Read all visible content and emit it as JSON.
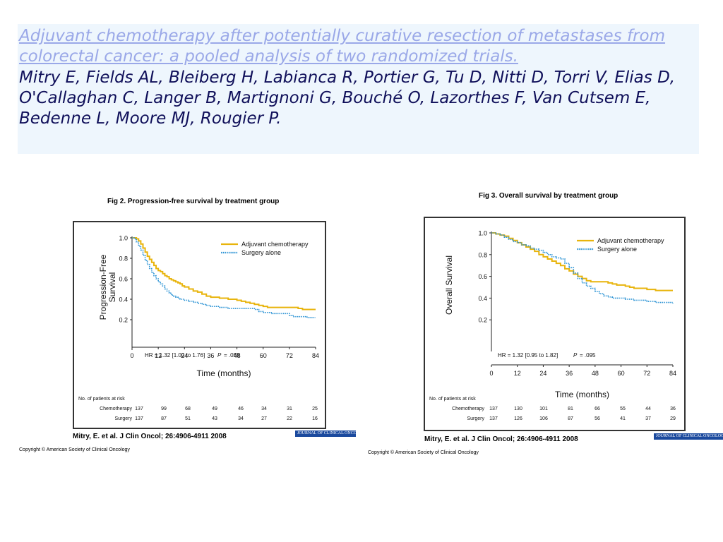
{
  "header": {
    "article_title": "Adjuvant chemotherapy after potentially curative resection of metastases from colorectal cancer: a pooled analysis of two randomized trials.",
    "authors": "Mitry E, Fields AL, Bleiberg H, Labianca R, Portier G, Tu D, Nitti D, Torri V, Elias D, O'Callaghan C, Langer B, Martignoni G, Bouché O, Lazorthes F, Van Cutsem E, Bedenne L, Moore MJ, Rougier P."
  },
  "colors": {
    "chemo": "#e8b40c",
    "surgery": "#2a92d4"
  },
  "chart_data": [
    {
      "type": "line",
      "figure_title": "Fig 2. Progression-free survival by treatment group",
      "xlabel": "Time (months)",
      "ylabel": "Progression-Free Survival",
      "ylabel_lines": [
        "Progression-Free",
        "Survival"
      ],
      "xlim": [
        0,
        84
      ],
      "ylim": [
        0,
        1.0
      ],
      "x_ticks": [
        "0",
        "12",
        "24",
        "36",
        "48",
        "60",
        "72",
        "84"
      ],
      "y_ticks": [
        "0.2",
        "0.4",
        "0.6",
        "0.8",
        "1.0"
      ],
      "legend_position": "top-right",
      "grid": false,
      "series": [
        {
          "name": "Adjuvant chemotherapy",
          "style": "solid",
          "x": [
            0,
            2,
            3,
            4,
            5,
            6,
            7,
            8,
            9,
            10,
            11,
            12,
            13,
            14,
            15,
            16,
            17,
            18,
            19,
            20,
            21,
            22,
            23,
            24,
            26,
            28,
            30,
            32,
            34,
            36,
            38,
            40,
            42,
            44,
            46,
            48,
            50,
            52,
            54,
            56,
            58,
            60,
            62,
            66,
            70,
            72,
            76,
            78,
            80,
            82,
            84
          ],
          "y": [
            1.0,
            0.99,
            0.97,
            0.94,
            0.9,
            0.86,
            0.82,
            0.79,
            0.76,
            0.73,
            0.7,
            0.68,
            0.67,
            0.65,
            0.63,
            0.62,
            0.6,
            0.59,
            0.58,
            0.57,
            0.56,
            0.55,
            0.53,
            0.52,
            0.5,
            0.48,
            0.47,
            0.45,
            0.43,
            0.42,
            0.42,
            0.41,
            0.41,
            0.4,
            0.4,
            0.39,
            0.38,
            0.37,
            0.36,
            0.35,
            0.34,
            0.33,
            0.32,
            0.32,
            0.32,
            0.32,
            0.31,
            0.3,
            0.3,
            0.3,
            0.3
          ]
        },
        {
          "name": "Surgery alone",
          "style": "dotted",
          "x": [
            0,
            1,
            2,
            3,
            4,
            5,
            6,
            7,
            8,
            9,
            10,
            11,
            12,
            13,
            14,
            15,
            16,
            17,
            18,
            19,
            20,
            21,
            22,
            24,
            26,
            28,
            30,
            32,
            34,
            36,
            38,
            40,
            42,
            44,
            46,
            48,
            50,
            52,
            54,
            56,
            58,
            60,
            62,
            64,
            66,
            68,
            70,
            72,
            74,
            76,
            78,
            80,
            82,
            84
          ],
          "y": [
            1.0,
            0.99,
            0.96,
            0.92,
            0.88,
            0.83,
            0.78,
            0.74,
            0.7,
            0.66,
            0.63,
            0.6,
            0.57,
            0.55,
            0.53,
            0.5,
            0.48,
            0.46,
            0.44,
            0.43,
            0.42,
            0.41,
            0.4,
            0.39,
            0.38,
            0.37,
            0.36,
            0.35,
            0.34,
            0.33,
            0.33,
            0.32,
            0.32,
            0.31,
            0.31,
            0.31,
            0.31,
            0.31,
            0.31,
            0.3,
            0.28,
            0.27,
            0.27,
            0.26,
            0.26,
            0.26,
            0.26,
            0.24,
            0.23,
            0.23,
            0.23,
            0.22,
            0.22,
            0.22
          ]
        }
      ],
      "annotation": {
        "hr_text": "HR = 1.32 [1.00 to 1.76]",
        "p_label": "P",
        "p_value": "= .058"
      },
      "risk_table": {
        "title": "No. of patients at risk",
        "rows": [
          {
            "label": "Chemotherapy",
            "values": [
              "137",
              "99",
              "68",
              "49",
              "46",
              "34",
              "31",
              "25"
            ]
          },
          {
            "label": "Surgery",
            "values": [
              "137",
              "87",
              "51",
              "43",
              "34",
              "27",
              "22",
              "16"
            ]
          }
        ]
      },
      "citation": "Mitry, E. et al. J Clin Oncol; 26:4906-4911 2008",
      "copyright": "Copyright © American Society of Clinical Oncology",
      "journal_logo": "JOURNAL OF CLINICAL ONCOLOGY"
    },
    {
      "type": "line",
      "figure_title": "Fig 3. Overall survival by treatment group",
      "xlabel": "Time (months)",
      "ylabel": "Overall Survival",
      "ylabel_lines": [
        "Overall Survival"
      ],
      "xlim": [
        0,
        84
      ],
      "ylim": [
        0,
        1.0
      ],
      "x_ticks": [
        "0",
        "12",
        "24",
        "36",
        "48",
        "60",
        "72",
        "84"
      ],
      "y_ticks": [
        "0.2",
        "0.4",
        "0.6",
        "0.8",
        "1.0"
      ],
      "legend_position": "top-right",
      "grid": false,
      "series": [
        {
          "name": "Adjuvant chemotherapy",
          "style": "solid",
          "x": [
            0,
            2,
            4,
            6,
            8,
            10,
            12,
            14,
            16,
            18,
            20,
            22,
            24,
            26,
            28,
            30,
            32,
            34,
            36,
            38,
            40,
            42,
            44,
            46,
            48,
            50,
            52,
            54,
            56,
            58,
            60,
            62,
            64,
            66,
            68,
            70,
            72,
            74,
            76,
            78,
            80,
            82,
            84
          ],
          "y": [
            1.0,
            0.99,
            0.98,
            0.97,
            0.95,
            0.93,
            0.91,
            0.89,
            0.87,
            0.85,
            0.83,
            0.8,
            0.78,
            0.76,
            0.74,
            0.72,
            0.7,
            0.67,
            0.65,
            0.62,
            0.6,
            0.58,
            0.56,
            0.55,
            0.55,
            0.55,
            0.55,
            0.54,
            0.53,
            0.52,
            0.52,
            0.51,
            0.5,
            0.49,
            0.49,
            0.49,
            0.48,
            0.48,
            0.47,
            0.47,
            0.47,
            0.47,
            0.47
          ]
        },
        {
          "name": "Surgery alone",
          "style": "dotted",
          "x": [
            0,
            2,
            4,
            6,
            8,
            10,
            12,
            14,
            16,
            18,
            20,
            22,
            24,
            26,
            28,
            30,
            32,
            34,
            36,
            38,
            40,
            42,
            44,
            46,
            48,
            50,
            52,
            54,
            56,
            58,
            60,
            62,
            64,
            66,
            68,
            70,
            72,
            74,
            76,
            78,
            80,
            82,
            84
          ],
          "y": [
            1.0,
            0.99,
            0.98,
            0.96,
            0.94,
            0.92,
            0.91,
            0.89,
            0.88,
            0.86,
            0.85,
            0.84,
            0.82,
            0.8,
            0.78,
            0.77,
            0.76,
            0.72,
            0.68,
            0.63,
            0.58,
            0.54,
            0.51,
            0.49,
            0.46,
            0.44,
            0.42,
            0.41,
            0.4,
            0.4,
            0.4,
            0.39,
            0.39,
            0.38,
            0.38,
            0.38,
            0.37,
            0.37,
            0.36,
            0.36,
            0.36,
            0.36,
            0.35
          ]
        }
      ],
      "annotation": {
        "hr_text": "HR = 1.32 [0.95 to 1.82]",
        "p_label": "P",
        "p_value": "= .095"
      },
      "risk_table": {
        "title": "No. of patients at risk",
        "rows": [
          {
            "label": "Chemotherapy",
            "values": [
              "137",
              "130",
              "101",
              "81",
              "66",
              "55",
              "44",
              "36"
            ]
          },
          {
            "label": "Surgery",
            "values": [
              "137",
              "126",
              "106",
              "87",
              "56",
              "41",
              "37",
              "29"
            ]
          }
        ]
      },
      "citation": "Mitry, E. et al. J Clin Oncol; 26:4906-4911 2008",
      "copyright": "Copyright © American Society of Clinical Oncology",
      "journal_logo": "JOURNAL OF CLINICAL ONCOLOGY"
    }
  ]
}
